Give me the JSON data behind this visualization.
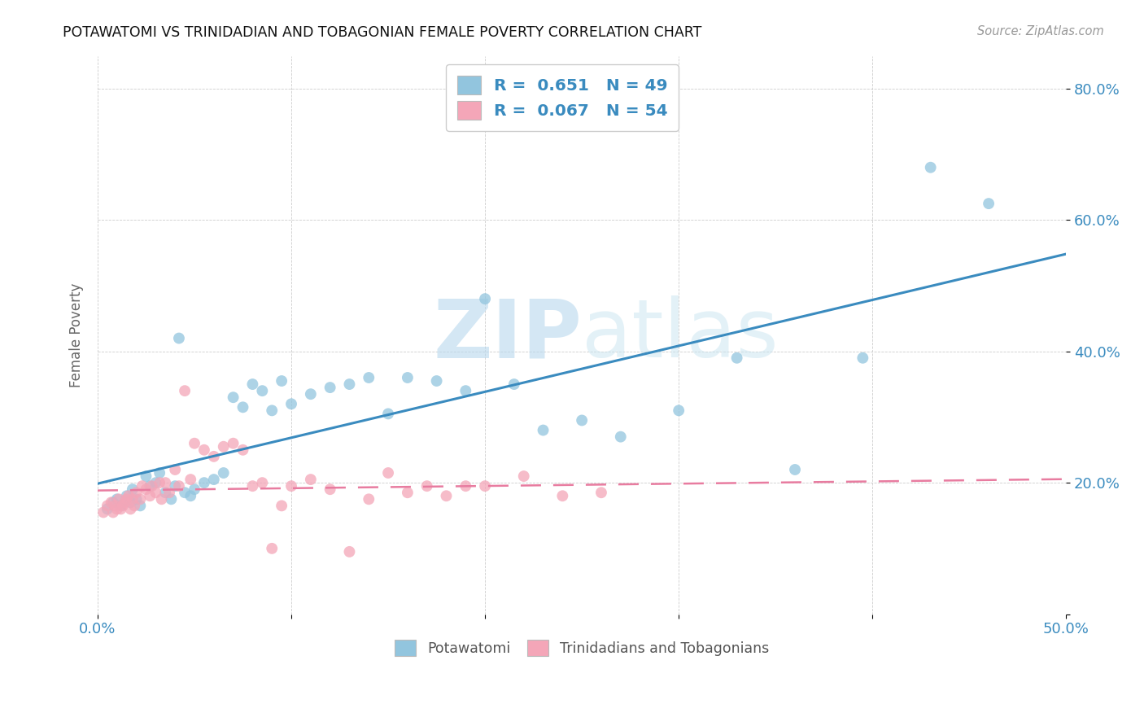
{
  "title": "POTAWATOMI VS TRINIDADIAN AND TOBAGONIAN FEMALE POVERTY CORRELATION CHART",
  "source": "Source: ZipAtlas.com",
  "ylabel": "Female Poverty",
  "xlim": [
    0.0,
    0.5
  ],
  "ylim": [
    0.0,
    0.85
  ],
  "xticks": [
    0.0,
    0.1,
    0.2,
    0.3,
    0.4,
    0.5
  ],
  "yticks": [
    0.0,
    0.2,
    0.4,
    0.6,
    0.8
  ],
  "color_blue": "#92c5de",
  "color_pink": "#f4a6b8",
  "trendline_blue": "#3a8bbf",
  "trendline_pink": "#e87ca0",
  "watermark_zip": "ZIP",
  "watermark_atlas": "atlas",
  "legend_r1": "R =  0.651   N = 49",
  "legend_r2": "R =  0.067   N = 54",
  "pot_x": [
    0.005,
    0.008,
    0.01,
    0.012,
    0.015,
    0.017,
    0.018,
    0.02,
    0.022,
    0.025,
    0.027,
    0.03,
    0.032,
    0.035,
    0.038,
    0.04,
    0.042,
    0.045,
    0.048,
    0.05,
    0.055,
    0.06,
    0.065,
    0.07,
    0.075,
    0.08,
    0.085,
    0.09,
    0.095,
    0.1,
    0.11,
    0.12,
    0.13,
    0.14,
    0.15,
    0.16,
    0.175,
    0.19,
    0.2,
    0.215,
    0.23,
    0.25,
    0.27,
    0.3,
    0.33,
    0.36,
    0.395,
    0.43,
    0.46
  ],
  "pot_y": [
    0.16,
    0.17,
    0.175,
    0.165,
    0.18,
    0.17,
    0.19,
    0.175,
    0.165,
    0.21,
    0.195,
    0.2,
    0.215,
    0.185,
    0.175,
    0.195,
    0.42,
    0.185,
    0.18,
    0.19,
    0.2,
    0.205,
    0.215,
    0.33,
    0.315,
    0.35,
    0.34,
    0.31,
    0.355,
    0.32,
    0.335,
    0.345,
    0.35,
    0.36,
    0.305,
    0.36,
    0.355,
    0.34,
    0.48,
    0.35,
    0.28,
    0.295,
    0.27,
    0.31,
    0.39,
    0.22,
    0.39,
    0.68,
    0.625
  ],
  "tri_x": [
    0.003,
    0.005,
    0.007,
    0.008,
    0.009,
    0.01,
    0.011,
    0.012,
    0.013,
    0.014,
    0.015,
    0.016,
    0.017,
    0.018,
    0.019,
    0.02,
    0.022,
    0.023,
    0.025,
    0.027,
    0.028,
    0.03,
    0.032,
    0.033,
    0.035,
    0.037,
    0.04,
    0.042,
    0.045,
    0.048,
    0.05,
    0.055,
    0.06,
    0.065,
    0.07,
    0.075,
    0.08,
    0.085,
    0.09,
    0.095,
    0.1,
    0.11,
    0.12,
    0.13,
    0.14,
    0.15,
    0.16,
    0.17,
    0.18,
    0.19,
    0.2,
    0.22,
    0.24,
    0.26
  ],
  "tri_y": [
    0.155,
    0.165,
    0.17,
    0.155,
    0.165,
    0.16,
    0.175,
    0.16,
    0.165,
    0.17,
    0.175,
    0.18,
    0.16,
    0.175,
    0.165,
    0.185,
    0.175,
    0.195,
    0.19,
    0.18,
    0.195,
    0.185,
    0.2,
    0.175,
    0.2,
    0.185,
    0.22,
    0.195,
    0.34,
    0.205,
    0.26,
    0.25,
    0.24,
    0.255,
    0.26,
    0.25,
    0.195,
    0.2,
    0.1,
    0.165,
    0.195,
    0.205,
    0.19,
    0.095,
    0.175,
    0.215,
    0.185,
    0.195,
    0.18,
    0.195,
    0.195,
    0.21,
    0.18,
    0.185
  ]
}
